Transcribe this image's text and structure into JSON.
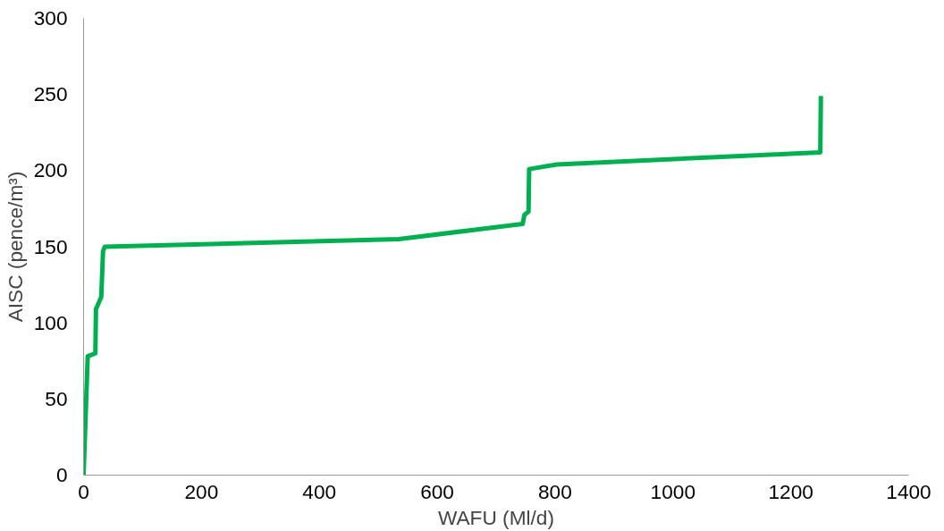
{
  "chart_data": {
    "type": "line",
    "xlabel": "WAFU (Ml/d)",
    "ylabel": "AISC (pence/m³)",
    "x": [
      0,
      7,
      20,
      21,
      30,
      33,
      36,
      535,
      745,
      748,
      755,
      756,
      803,
      1250,
      1251
    ],
    "series": [
      {
        "color": "#00b050",
        "values": [
          0,
          78,
          80,
          109,
          117,
          147,
          150,
          155,
          165,
          171,
          173,
          201,
          204,
          212,
          249
        ]
      }
    ],
    "xlim": [
      0,
      1400
    ],
    "xticks": [
      0,
      200,
      400,
      600,
      800,
      1000,
      1200,
      1400
    ],
    "ylim": [
      0,
      300
    ],
    "yticks": [
      0,
      50,
      100,
      150,
      200,
      250,
      300
    ],
    "grid": false,
    "marker": "none",
    "line_style": "solid"
  }
}
